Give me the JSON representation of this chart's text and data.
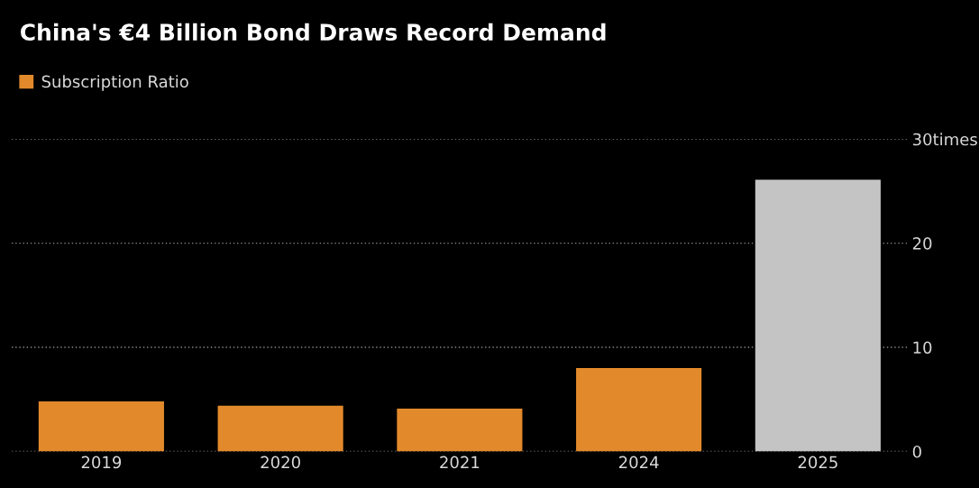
{
  "chart_data": {
    "type": "bar",
    "title": "China's €4 Billion Bond Draws Record Demand",
    "categories": [
      "2019",
      "2020",
      "2021",
      "2024",
      "2025"
    ],
    "series": [
      {
        "name": "Subscription Ratio",
        "color": "#e28a2b",
        "colors": [
          "#e28a2b",
          "#e28a2b",
          "#e28a2b",
          "#e28a2b",
          "#c4c4c4"
        ],
        "values": [
          4.8,
          4.4,
          4.1,
          8.0,
          26.1
        ]
      }
    ],
    "ylim": [
      0,
      30
    ],
    "yticks": [
      0,
      10,
      20,
      {
        "value": 30,
        "label": "30times"
      }
    ],
    "grid": "y",
    "legend": "top left"
  }
}
